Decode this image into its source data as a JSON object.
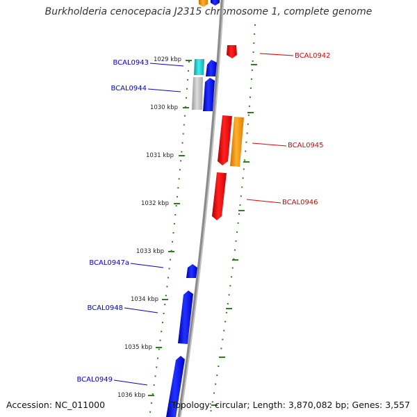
{
  "title": "Burkholderia cenocepacia J2315 chromosome 1, complete genome",
  "footer": {
    "accession": "Accession: NC_011000",
    "summary": "Topology: circular; Length: 3,870,082 bp; Genes: 3,557"
  },
  "colors": {
    "backbone": "#888888",
    "tick": "#2e7d1f",
    "forward_gene": "#0000ee",
    "reverse_gene": "#ee0000",
    "forward_label": "#0000cc",
    "reverse_label": "#dd0000",
    "cyan_feature": "#22cccc",
    "grey_feature": "#bbbbbb",
    "orange_feature": "#ff9900"
  },
  "scale_labels": [
    "1029 kbp",
    "1030 kbp",
    "1031 kbp",
    "1032 kbp",
    "1033 kbp",
    "1034 kbp",
    "1035 kbp",
    "1036 kbp"
  ],
  "gene_labels": [
    {
      "name": "BCAL0942",
      "strand": "reverse"
    },
    {
      "name": "BCAL0943",
      "strand": "forward"
    },
    {
      "name": "BCAL0944",
      "strand": "forward"
    },
    {
      "name": "BCAL0945",
      "strand": "reverse"
    },
    {
      "name": "BCAL0946",
      "strand": "reverse"
    },
    {
      "name": "BCAL0947a",
      "strand": "forward"
    },
    {
      "name": "BCAL0948",
      "strand": "forward"
    },
    {
      "name": "BCAL0949",
      "strand": "forward"
    }
  ]
}
